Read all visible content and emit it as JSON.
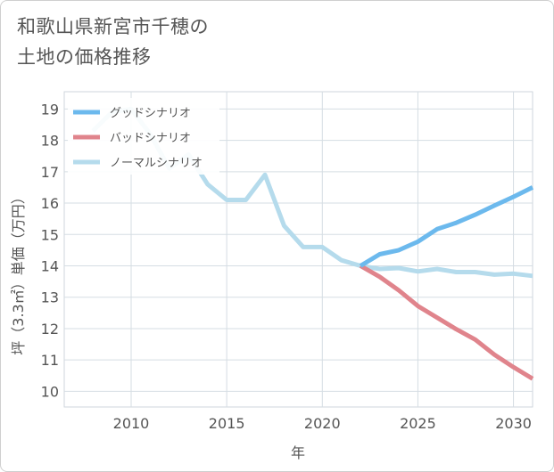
{
  "title": {
    "line1": "和歌山県新宮市千穂の",
    "line2": "土地の価格推移"
  },
  "chart_data": {
    "type": "line",
    "xlabel": "年",
    "ylabel": "坪（3.3㎡）単価（万円）",
    "xlim": [
      2006.5,
      2031
    ],
    "ylim": [
      9.5,
      19.55
    ],
    "xticks": [
      2010,
      2015,
      2020,
      2025,
      2030
    ],
    "yticks": [
      10,
      11,
      12,
      13,
      14,
      15,
      16,
      17,
      18,
      19
    ],
    "grid": true,
    "legend_position": "top-left",
    "series": [
      {
        "name": "グッドシナリオ",
        "color": "#6cb9ed",
        "x": [
          2022,
          2023,
          2024,
          2025,
          2026,
          2027,
          2028,
          2029,
          2030,
          2031
        ],
        "y": [
          14.0,
          14.37,
          14.5,
          14.77,
          15.17,
          15.37,
          15.63,
          15.92,
          16.2,
          16.5
        ]
      },
      {
        "name": "バッドシナリオ",
        "color": "#e0848c",
        "x": [
          2022,
          2023,
          2024,
          2025,
          2026,
          2027,
          2028,
          2029,
          2030,
          2031
        ],
        "y": [
          14.0,
          13.65,
          13.22,
          12.72,
          12.35,
          11.98,
          11.65,
          11.17,
          10.77,
          10.4
        ]
      },
      {
        "name": "ノーマルシナリオ",
        "color": "#b5dbec",
        "x": [
          2008,
          2009,
          2010,
          2011,
          2012,
          2013,
          2014,
          2015,
          2016,
          2017,
          2018,
          2019,
          2020,
          2021,
          2022,
          2023,
          2024,
          2025,
          2026,
          2027,
          2028,
          2029,
          2030,
          2031
        ],
        "y": [
          18.3,
          18.9,
          19.0,
          18.2,
          17.1,
          17.55,
          16.6,
          16.1,
          16.1,
          16.9,
          15.28,
          14.6,
          14.6,
          14.18,
          14.0,
          13.9,
          13.93,
          13.82,
          13.9,
          13.8,
          13.8,
          13.72,
          13.75,
          13.68
        ]
      }
    ]
  }
}
